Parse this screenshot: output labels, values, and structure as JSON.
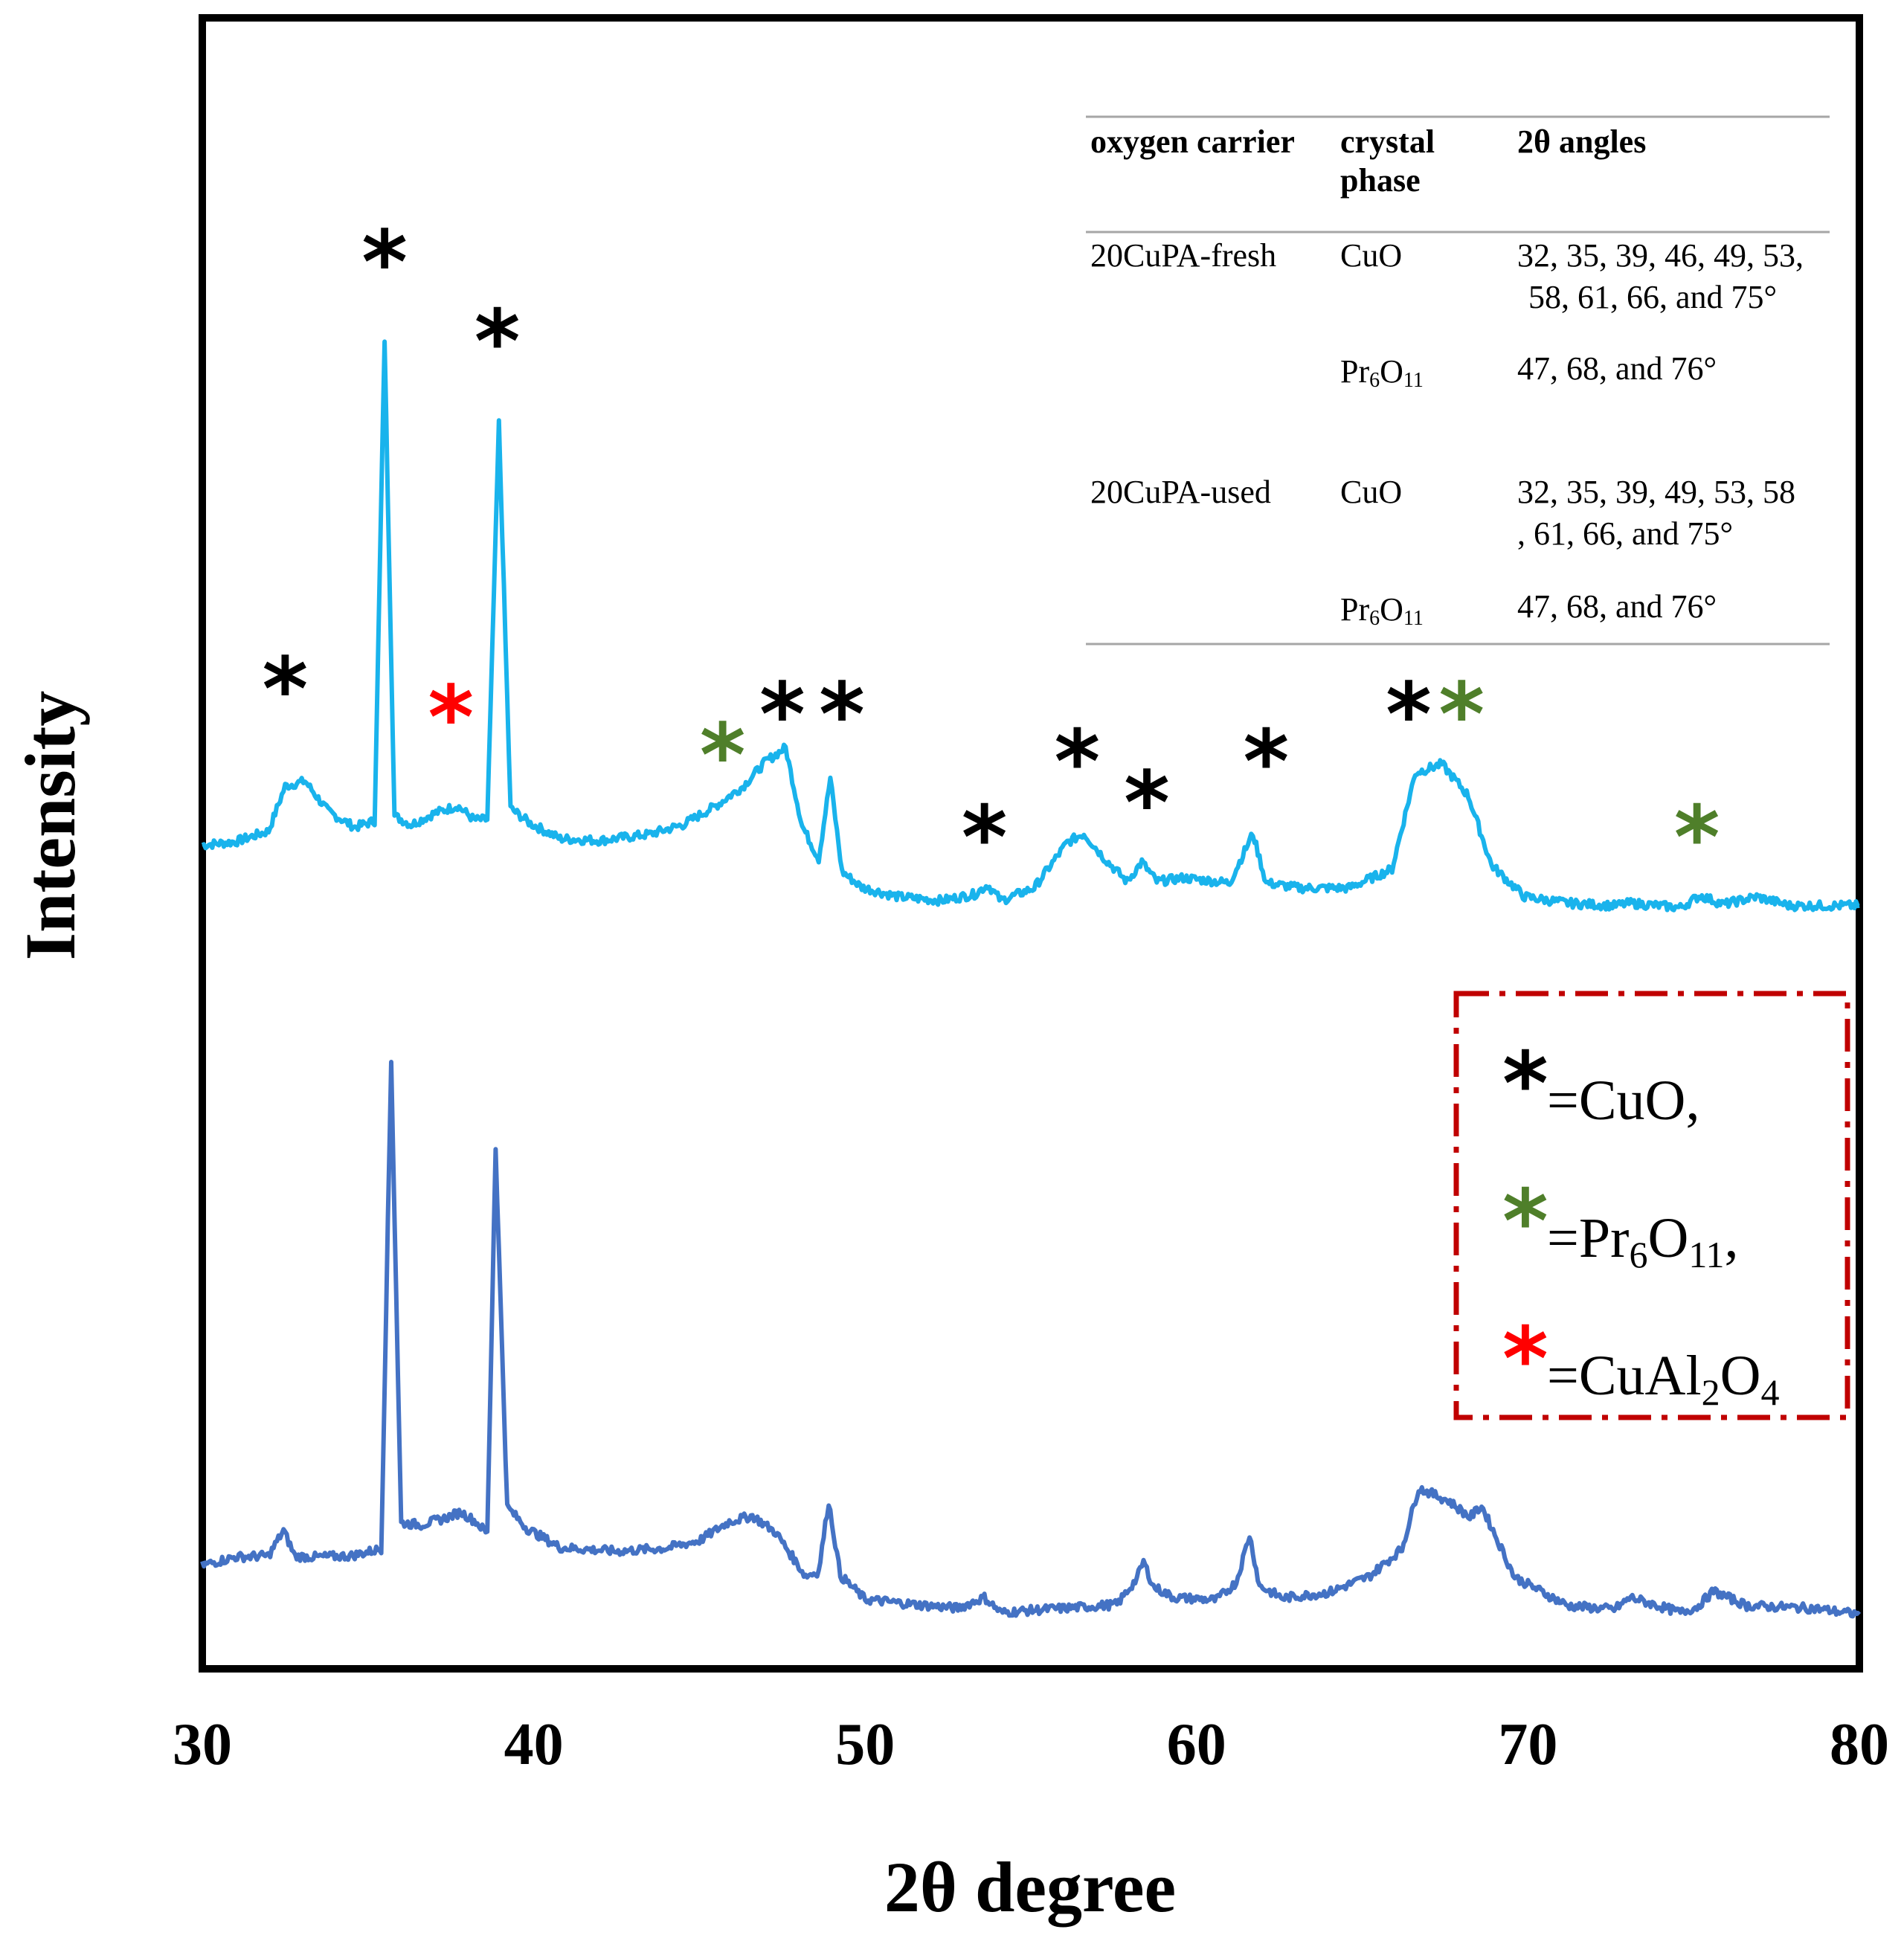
{
  "chart_data": {
    "type": "line",
    "title": "",
    "xlabel": "2θ degree",
    "ylabel": "Intensity",
    "xlim": [
      30,
      80
    ],
    "xticks": [
      "30",
      "40",
      "50",
      "60",
      "70",
      "80"
    ],
    "colors": {
      "fresh": "#19b3ec",
      "used": "#4472c4",
      "cuo": "#000000",
      "pr6o11": "#4f7f2a",
      "cual2o4": "#ff0000",
      "legend_border": "#c00000"
    },
    "series": [
      {
        "name": "20CuPA-fresh",
        "x": [
          30,
          31,
          32,
          32.5,
          33.1,
          33.8,
          34.6,
          35.2,
          35.5,
          35.8,
          36.3,
          37,
          37.7,
          38.2,
          38.6,
          38.95,
          39.3,
          39.9,
          40.8,
          42,
          43.5,
          44.5,
          45.5,
          46.3,
          47,
          47.6,
          48.1,
          48.6,
          48.95,
          49.3,
          49.9,
          51,
          52.3,
          53.3,
          53.7,
          54.1,
          55.1,
          56.1,
          56.6,
          57.2,
          57.9,
          58.35,
          58.8,
          59.6,
          61,
          61.7,
          62.1,
          63.1,
          64.6,
          65.9,
          66.6,
          67.4,
          68.2,
          68.9,
          69.9,
          71.2,
          72.6,
          73.1,
          74.6,
          75.2,
          75.9,
          76.9,
          77.9,
          80
        ],
        "values": [
          128,
          133,
          150,
          221,
          229,
          181,
          156,
          166,
          928,
          174,
          160,
          178,
          190,
          168,
          168,
          795,
          186,
          162,
          138,
          135,
          145,
          160,
          190,
          220,
          260,
          282,
          158,
          106,
          234,
          86,
          61,
          46,
          40,
          50,
          65,
          40,
          60,
          132,
          146,
          108,
          70,
          101,
          70,
          76,
          68,
          146,
          68,
          60,
          60,
          90,
          242,
          256,
          206,
          96,
          46,
          36,
          32,
          36,
          29,
          48,
          34,
          46,
          32,
          32
        ]
      },
      {
        "name": "20CuPA-used",
        "x": [
          30,
          31,
          32,
          32.45,
          32.8,
          33.5,
          34.5,
          35.4,
          35.7,
          36,
          36.6,
          37.3,
          37.8,
          38.25,
          38.6,
          38.85,
          39.2,
          39.8,
          40.8,
          42.5,
          44,
          45,
          45.9,
          46.6,
          47.3,
          48.2,
          48.6,
          48.9,
          49.25,
          50,
          51.5,
          52.8,
          53.6,
          54.1,
          55.1,
          56.6,
          57.6,
          58.2,
          58.4,
          58.7,
          59.3,
          60.6,
          61.2,
          61.6,
          61.9,
          62.6,
          64,
          65.2,
          66.2,
          66.7,
          67.6,
          68.25,
          68.6,
          69.6,
          71.2,
          72.6,
          73.1,
          74.6,
          75.1,
          75.6,
          76.6,
          78.6,
          80
        ],
        "values": [
          118,
          131,
          133,
          173,
          132,
          131,
          133,
          144,
          916,
          185,
          182,
          192,
          202,
          187,
          168,
          779,
          210,
          176,
          146,
          140,
          145,
          157,
          187,
          196,
          170,
          101,
          108,
          219,
          102,
          64,
          56,
          50,
          67,
          43,
          47,
          52,
          56,
          97,
          124,
          84,
          67,
          63,
          91,
          166,
          85,
          66,
          75,
          100,
          144,
          240,
          220,
          194,
          212,
          99,
          54,
          48,
          67,
          43,
          52,
          77,
          54,
          50,
          40
        ]
      }
    ],
    "annotations": [
      {
        "x": 32.5,
        "y": 415,
        "phase": "CuO"
      },
      {
        "x": 35.5,
        "y": 1090,
        "phase": "CuO"
      },
      {
        "x": 38.9,
        "y": 965,
        "phase": "CuO"
      },
      {
        "x": 37.5,
        "y": 370,
        "phase": "CuAl2O4"
      },
      {
        "x": 45.7,
        "y": 310,
        "phase": "Pr6O11"
      },
      {
        "x": 47.5,
        "y": 375,
        "phase": "CuO"
      },
      {
        "x": 49.3,
        "y": 375,
        "phase": "CuO"
      },
      {
        "x": 53.6,
        "y": 180,
        "phase": "CuO"
      },
      {
        "x": 56.4,
        "y": 300,
        "phase": "CuO"
      },
      {
        "x": 58.5,
        "y": 235,
        "phase": "CuO"
      },
      {
        "x": 62.1,
        "y": 300,
        "phase": "CuO"
      },
      {
        "x": 66.4,
        "y": 375,
        "phase": "CuO"
      },
      {
        "x": 68.0,
        "y": 375,
        "phase": "Pr6O11"
      },
      {
        "x": 75.1,
        "y": 180,
        "phase": "Pr6O11"
      }
    ],
    "inset_table": {
      "headers": [
        "oxygen carrier",
        "crystal",
        "phase",
        "2θ angles"
      ],
      "rows": [
        {
          "carrier": "20CuPA-fresh",
          "phase": "CuO",
          "angles_line1": "32, 35, 39, 46, 49, 53,",
          "angles_line2": "58, 61, 66, and 75°"
        },
        {
          "carrier": "",
          "phase_base": "Pr",
          "phase_sub1": "6",
          "phase_mid": "O",
          "phase_sub2": "11",
          "angles_line1": "47, 68, and 76°"
        },
        {
          "carrier": "20CuPA-used",
          "phase": "CuO",
          "angles_line1": "32, 35, 39,  49, 53, 58",
          "angles_line2": ", 61, 66, and 75°"
        },
        {
          "carrier": "",
          "phase_base": "Pr",
          "phase_sub1": "6",
          "phase_mid": "O",
          "phase_sub2": "11",
          "angles_line1": "47, 68, and 76°"
        }
      ]
    },
    "legend": {
      "star": "*",
      "cuo": "=CuO,",
      "pr_prefix": "=Pr",
      "pr_sub1": "6",
      "pr_mid": "O",
      "pr_sub2": "11",
      "pr_suffix": ",",
      "cual_prefix": "=CuAl",
      "cual_sub1": "2",
      "cual_mid": "O",
      "cual_sub2": "4"
    }
  }
}
